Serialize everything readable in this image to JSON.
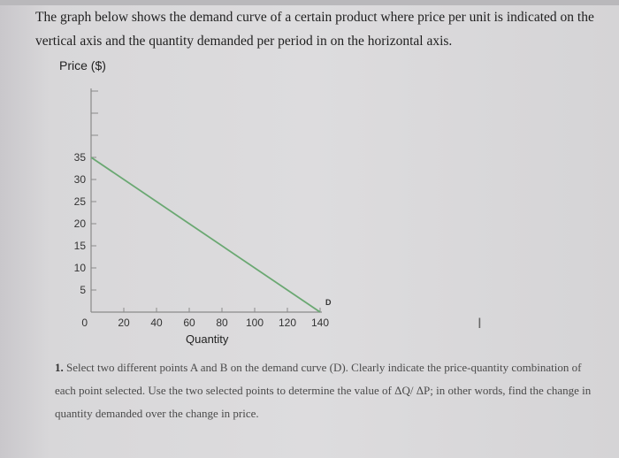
{
  "intro_text": "The graph below shows the demand curve of a certain product where price per unit is indicated on the vertical axis and the quantity demanded per period in on the horizontal axis.",
  "question": {
    "number": "1.",
    "text": "Select two different points A and B on the demand curve (D). Clearly indicate the price-quantity combination of each point selected. Use the two selected points to determine the value of ΔQ/ ΔP; in other words, find the change in quantity demanded over the change in price."
  },
  "cursor_glyph": "I",
  "chart_data": {
    "type": "line",
    "ylabel": "Price ($)",
    "xlabel": "Quantity",
    "x_ticks": [
      0,
      20,
      40,
      60,
      80,
      100,
      120,
      140
    ],
    "x_tick_labels": [
      "0",
      "20",
      "40",
      "60",
      "80",
      "100",
      "120",
      "140"
    ],
    "y_ticks": [
      5,
      10,
      15,
      20,
      25,
      30,
      35
    ],
    "y_tick_labels": [
      "5",
      "10",
      "15",
      "20",
      "25",
      "30",
      "35"
    ],
    "xlim": [
      0,
      140
    ],
    "ylim": [
      0,
      50
    ],
    "grid": false,
    "series": [
      {
        "name": "D",
        "x": [
          0,
          140
        ],
        "y": [
          35,
          0
        ],
        "color": "#6aa872"
      }
    ]
  }
}
